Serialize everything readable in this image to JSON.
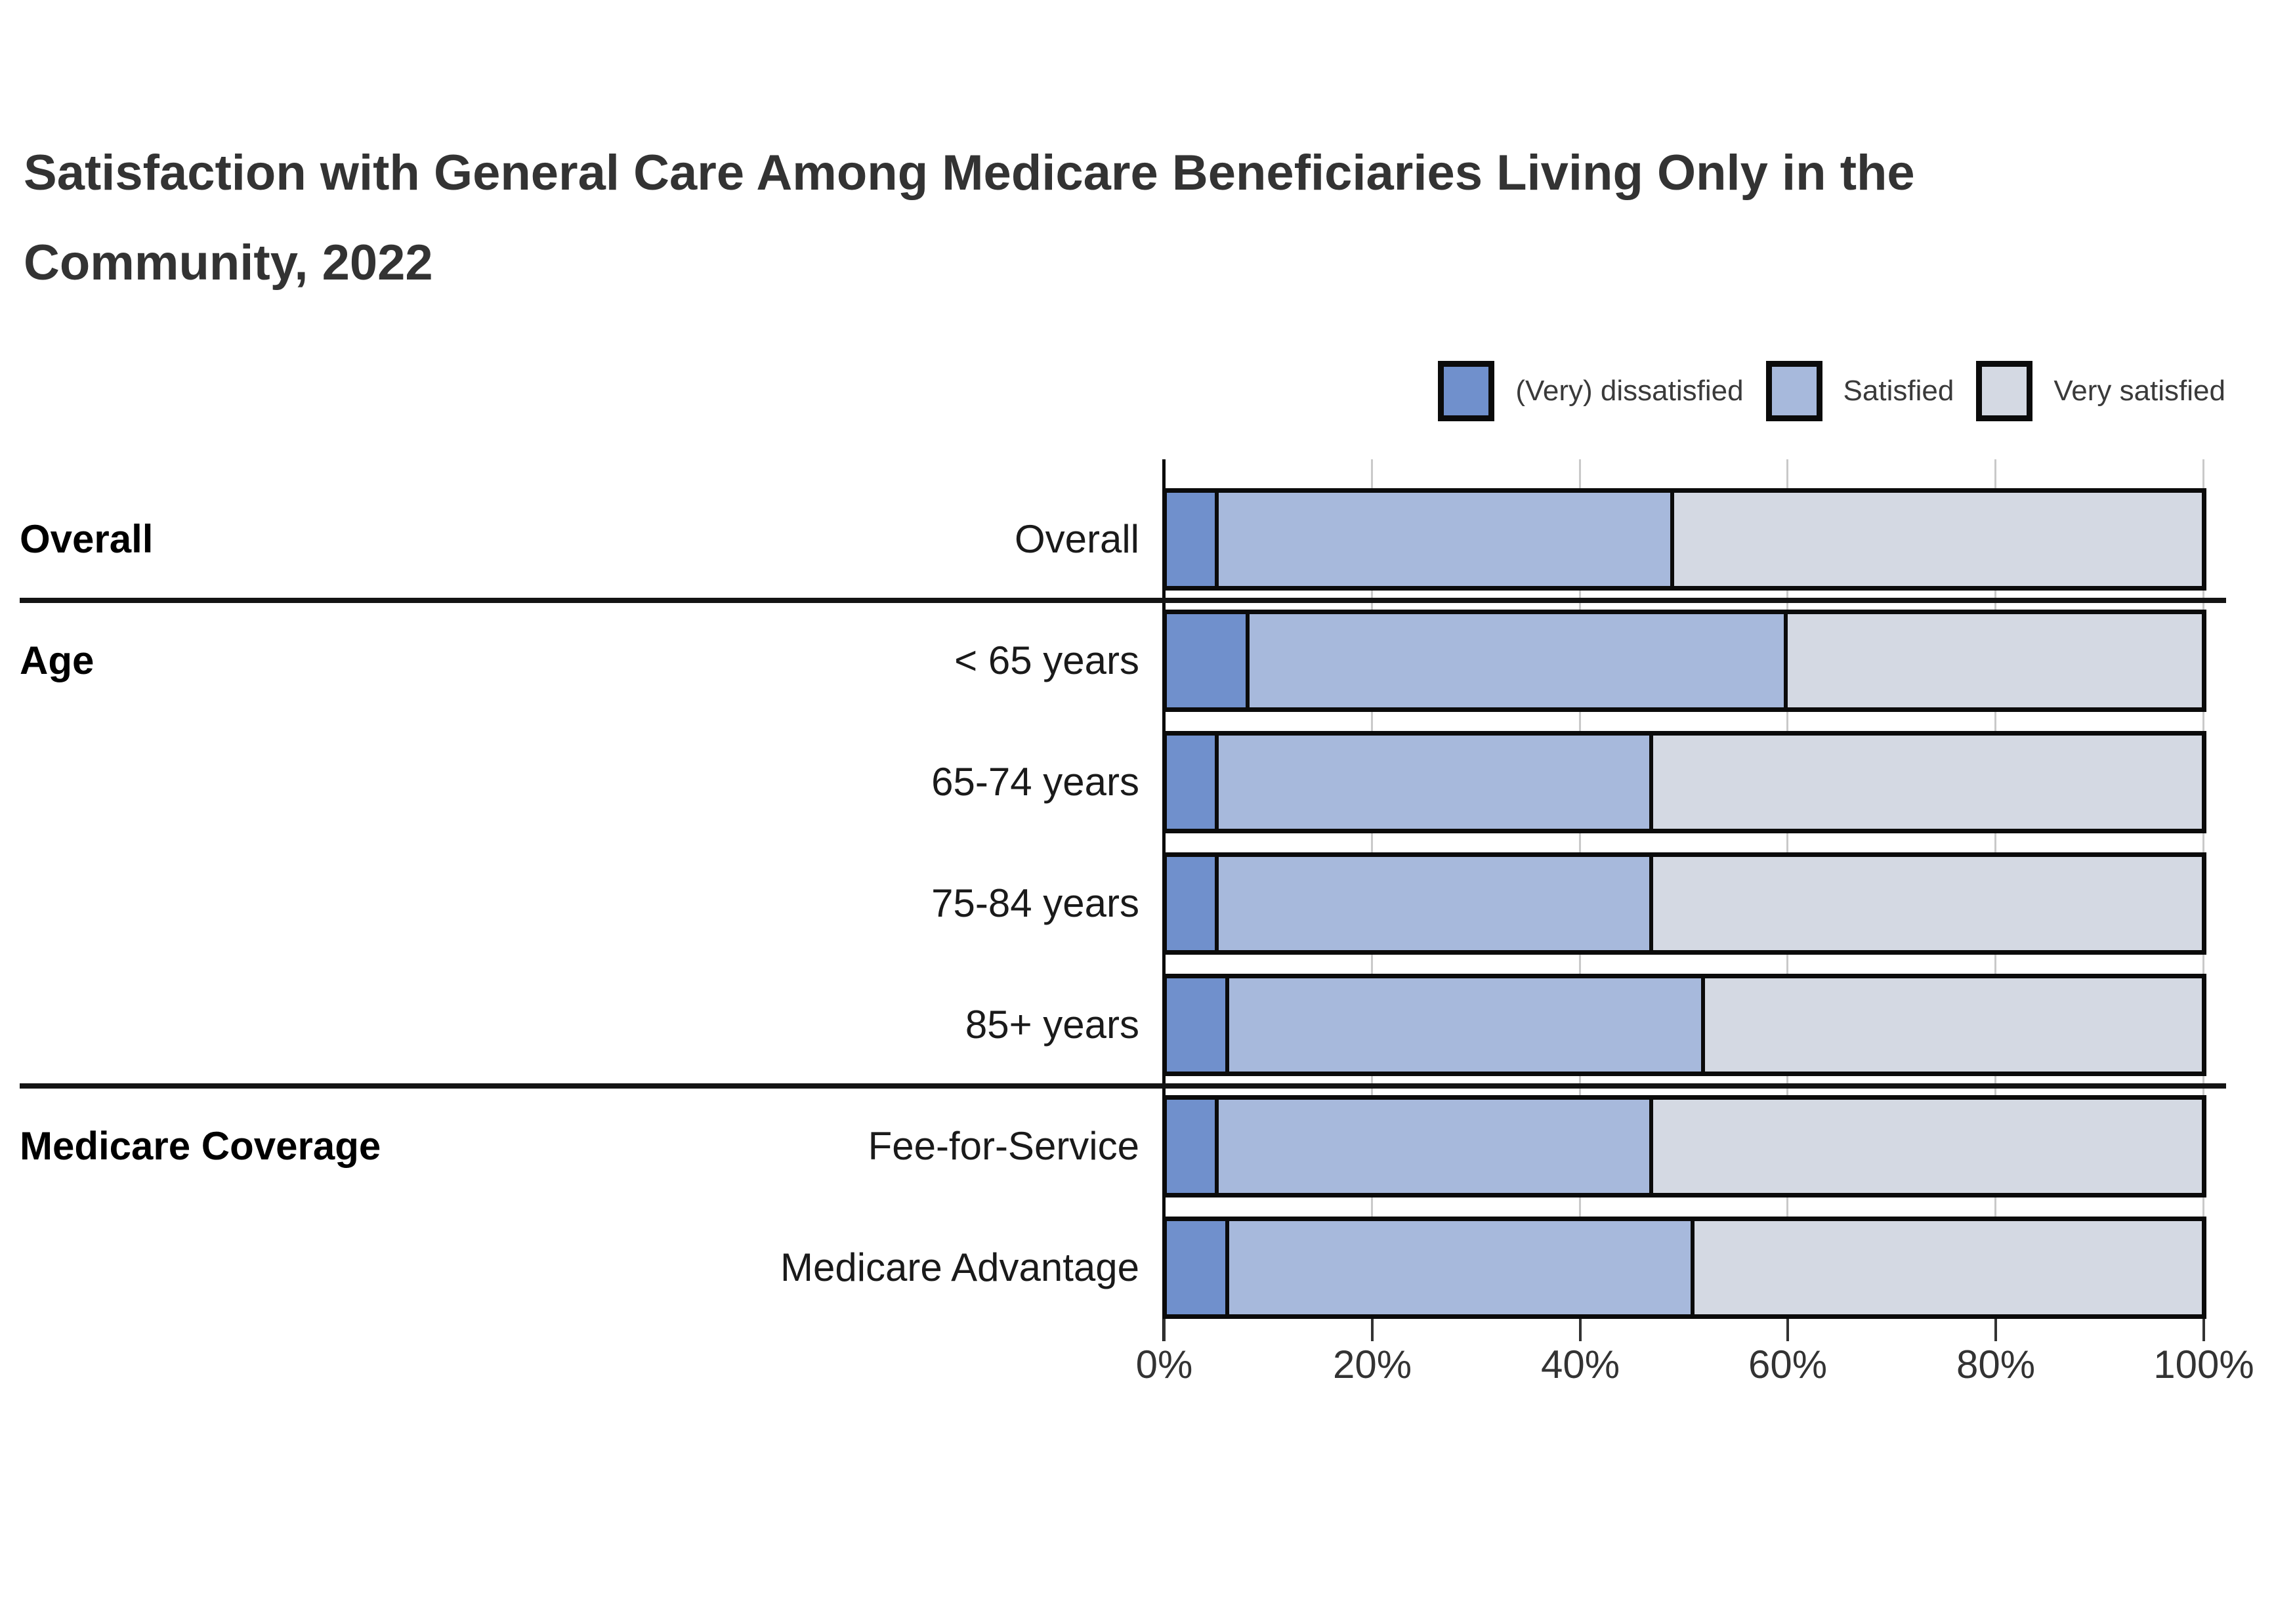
{
  "title": {
    "line1": "Satisfaction with General Care Among Medicare Beneficiaries Living Only in the",
    "line2": "Community, 2022"
  },
  "legend": [
    {
      "label": "(Very) dissatisfied",
      "color": "#7090CC"
    },
    {
      "label": "Satisfied",
      "color": "#A7B9DC"
    },
    {
      "label": "Very satisfied",
      "color": "#D4D9E3"
    }
  ],
  "colors": {
    "bar_border": "#0b0b0b",
    "gridline": "#c9c9c9",
    "axis_line": "#0b0b0b",
    "tick": "#333333",
    "text": "#333333",
    "separator": "#141414"
  },
  "chart_data": {
    "type": "bar",
    "orientation": "horizontal",
    "stacked": true,
    "unit": "percent",
    "xlim": [
      0,
      100
    ],
    "x_ticks": [
      "0%",
      "20%",
      "40%",
      "60%",
      "80%",
      "100%"
    ],
    "grid": true,
    "legend_position": "top-right",
    "series_names": [
      "(Very) dissatisfied",
      "Satisfied",
      "Very satisfied"
    ],
    "groups": [
      {
        "label": "Overall",
        "rows": [
          {
            "label": "Overall",
            "values": [
              5,
              44,
              51
            ]
          }
        ]
      },
      {
        "label": "Age",
        "rows": [
          {
            "label": "< 65 years",
            "values": [
              8,
              52,
              40
            ]
          },
          {
            "label": "65-74 years",
            "values": [
              5,
              42,
              53
            ]
          },
          {
            "label": "75-84 years",
            "values": [
              5,
              42,
              53
            ]
          },
          {
            "label": "85+ years",
            "values": [
              6,
              46,
              48
            ]
          }
        ]
      },
      {
        "label": "Medicare Coverage",
        "rows": [
          {
            "label": "Fee-for-Service",
            "values": [
              5,
              42,
              53
            ]
          },
          {
            "label": "Medicare Advantage",
            "values": [
              6,
              45,
              49
            ]
          }
        ]
      }
    ]
  }
}
